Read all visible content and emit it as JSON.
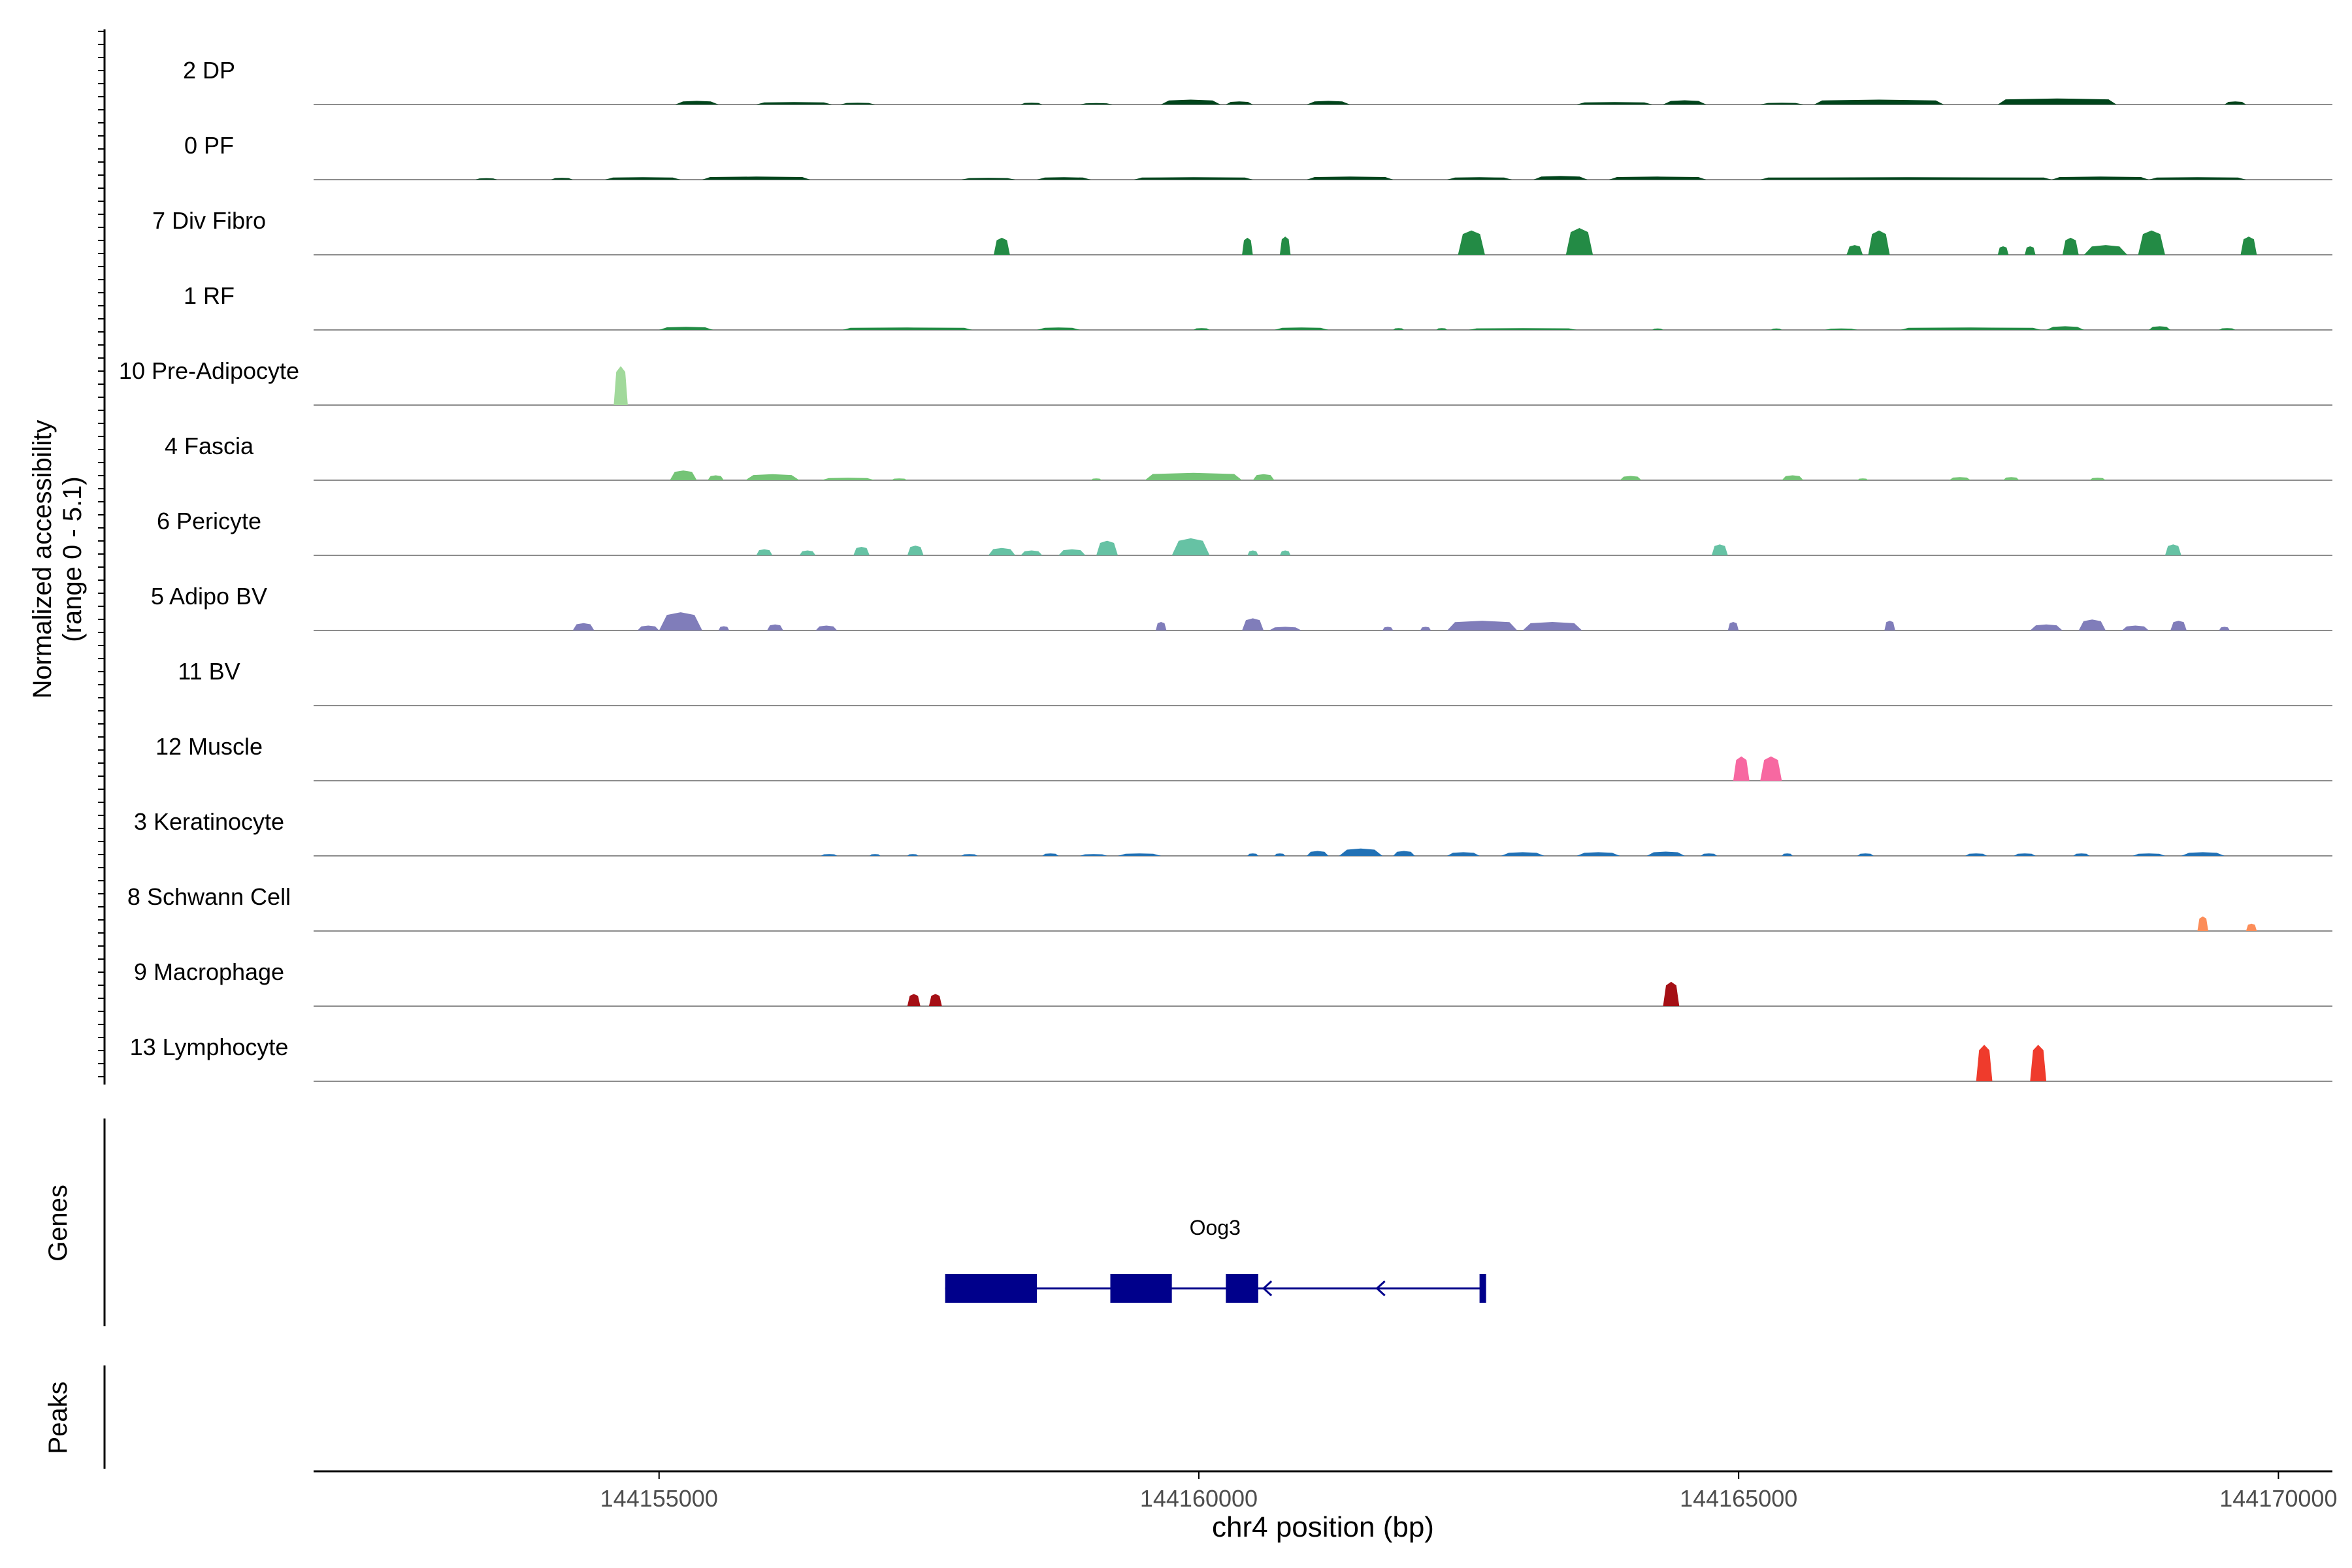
{
  "chart_data": {
    "type": "area",
    "title": "",
    "ylabel_line1": "Normalized accessibility",
    "ylabel_line2": "(range 0 - 5.1)",
    "y_range": [
      0,
      5.1
    ],
    "xlabel": "chr4 position (bp)",
    "xlim": [
      144151800,
      144170500
    ],
    "x_ticks": [
      144155000,
      144160000,
      144165000,
      144170000
    ],
    "x_tick_labels": [
      "144155000",
      "144160000",
      "144165000",
      "144170000"
    ],
    "genes_label": "Genes",
    "peaks_label": "Peaks",
    "gene": {
      "name": "Oog3",
      "start": 144157650,
      "end": 144162650,
      "strand": "-",
      "color": "#00008B",
      "exons": [
        [
          144157650,
          144158500
        ],
        [
          144159180,
          144159750
        ],
        [
          144160250,
          144160550
        ],
        [
          144162600,
          144162650
        ]
      ],
      "arrows": [
        144158350,
        144160600,
        144161650
      ]
    },
    "series": [
      {
        "name": "2 DP",
        "color": "#00441B",
        "peaks": [
          [
            144155150,
            144155550,
            0.3
          ],
          [
            144155900,
            144156600,
            0.2
          ],
          [
            144156680,
            144157000,
            0.15
          ],
          [
            144158350,
            144158550,
            0.15
          ],
          [
            144158900,
            144159200,
            0.12
          ],
          [
            144159650,
            144160200,
            0.4
          ],
          [
            144160250,
            144160500,
            0.25
          ],
          [
            144161000,
            144161400,
            0.3
          ],
          [
            144163500,
            144164200,
            0.2
          ],
          [
            144164300,
            144164700,
            0.35
          ],
          [
            144165200,
            144165600,
            0.15
          ],
          [
            144165700,
            144166900,
            0.4
          ],
          [
            144167400,
            144168500,
            0.5
          ],
          [
            144169500,
            144169700,
            0.25
          ]
        ]
      },
      {
        "name": "0 PF",
        "color": "#00441B",
        "peaks": [
          [
            144153300,
            144153500,
            0.12
          ],
          [
            144154000,
            144154200,
            0.15
          ],
          [
            144154500,
            144155200,
            0.2
          ],
          [
            144155400,
            144156400,
            0.25
          ],
          [
            144157800,
            144158300,
            0.15
          ],
          [
            144158500,
            144159000,
            0.2
          ],
          [
            144159400,
            144160500,
            0.2
          ],
          [
            144161000,
            144161800,
            0.25
          ],
          [
            144162300,
            144162900,
            0.2
          ],
          [
            144163100,
            144163600,
            0.3
          ],
          [
            144163800,
            144164700,
            0.25
          ],
          [
            144165200,
            144167900,
            0.2
          ],
          [
            144167900,
            144168800,
            0.25
          ],
          [
            144168800,
            144169700,
            0.2
          ]
        ]
      },
      {
        "name": "7 Div Fibro",
        "color": "#238B45",
        "peaks": [
          [
            144158100,
            144158250,
            1.4
          ],
          [
            144160400,
            144160500,
            1.4
          ],
          [
            144160750,
            144160850,
            1.5
          ],
          [
            144162400,
            144162650,
            2.0
          ],
          [
            144163400,
            144163650,
            2.2
          ],
          [
            144166000,
            144166150,
            0.8
          ],
          [
            144166200,
            144166400,
            2.0
          ],
          [
            144167400,
            144167500,
            0.7
          ],
          [
            144167650,
            144167750,
            0.7
          ],
          [
            144168000,
            144168150,
            1.4
          ],
          [
            144168200,
            144168600,
            0.8
          ],
          [
            144168700,
            144168950,
            2.0
          ],
          [
            144169650,
            144169800,
            1.5
          ]
        ]
      },
      {
        "name": "1 RF",
        "color": "#238B45",
        "peaks": [
          [
            144155000,
            144155500,
            0.25
          ],
          [
            144156700,
            144157900,
            0.2
          ],
          [
            144158500,
            144158900,
            0.2
          ],
          [
            144159950,
            144160100,
            0.15
          ],
          [
            144160700,
            144161200,
            0.2
          ],
          [
            144161800,
            144161900,
            0.15
          ],
          [
            144162200,
            144162300,
            0.15
          ],
          [
            144162500,
            144163500,
            0.15
          ],
          [
            144164200,
            144164300,
            0.12
          ],
          [
            144165300,
            144165400,
            0.12
          ],
          [
            144165800,
            144166100,
            0.12
          ],
          [
            144166500,
            144167800,
            0.2
          ],
          [
            144167850,
            144168200,
            0.3
          ],
          [
            144168800,
            144169000,
            0.3
          ],
          [
            144169450,
            144169600,
            0.15
          ]
        ]
      },
      {
        "name": "10 Pre-Adipocyte",
        "color": "#A1D99B",
        "peaks": [
          [
            144154580,
            144154710,
            3.2
          ]
        ]
      },
      {
        "name": "4 Fascia",
        "color": "#74C476",
        "peaks": [
          [
            144155100,
            144155350,
            0.8
          ],
          [
            144155450,
            144155600,
            0.4
          ],
          [
            144155800,
            144156300,
            0.5
          ],
          [
            144156500,
            144157000,
            0.2
          ],
          [
            144157150,
            144157300,
            0.15
          ],
          [
            144159000,
            144159100,
            0.15
          ],
          [
            144159500,
            144160400,
            0.6
          ],
          [
            144160500,
            144160700,
            0.5
          ],
          [
            144163900,
            144164100,
            0.35
          ],
          [
            144165400,
            144165600,
            0.4
          ],
          [
            144166100,
            144166200,
            0.15
          ],
          [
            144166950,
            144167150,
            0.25
          ],
          [
            144167450,
            144167600,
            0.25
          ],
          [
            144168250,
            144168400,
            0.2
          ]
        ]
      },
      {
        "name": "6 Pericyte",
        "color": "#66C2A4",
        "peaks": [
          [
            144155900,
            144156050,
            0.5
          ],
          [
            144156300,
            144156450,
            0.4
          ],
          [
            144156800,
            144156950,
            0.7
          ],
          [
            144157300,
            144157450,
            0.8
          ],
          [
            144158050,
            144158300,
            0.6
          ],
          [
            144158350,
            144158550,
            0.4
          ],
          [
            144158700,
            144158950,
            0.5
          ],
          [
            144159050,
            144159250,
            1.2
          ],
          [
            144159750,
            144160100,
            1.4
          ],
          [
            144160450,
            144160550,
            0.4
          ],
          [
            144160750,
            144160850,
            0.4
          ],
          [
            144164750,
            144164900,
            0.9
          ],
          [
            144168950,
            144169100,
            0.9
          ]
        ]
      },
      {
        "name": "5 Adipo BV",
        "color": "#807DBA",
        "peaks": [
          [
            144154200,
            144154400,
            0.6
          ],
          [
            144154800,
            144155000,
            0.4
          ],
          [
            144155000,
            144155400,
            1.5
          ],
          [
            144155550,
            144155650,
            0.35
          ],
          [
            144156000,
            144156150,
            0.5
          ],
          [
            144156450,
            144156650,
            0.4
          ],
          [
            144159600,
            144159700,
            0.7
          ],
          [
            144160400,
            144160600,
            1.0
          ],
          [
            144160650,
            144160950,
            0.3
          ],
          [
            144161700,
            144161800,
            0.3
          ],
          [
            144162050,
            144162150,
            0.3
          ],
          [
            144162300,
            144162950,
            0.8
          ],
          [
            144163000,
            144163550,
            0.7
          ],
          [
            144164900,
            144165000,
            0.7
          ],
          [
            144166350,
            144166450,
            0.8
          ],
          [
            144167700,
            144168000,
            0.5
          ],
          [
            144168150,
            144168400,
            0.9
          ],
          [
            144168550,
            144168800,
            0.4
          ],
          [
            144169000,
            144169150,
            0.8
          ],
          [
            144169450,
            144169550,
            0.3
          ]
        ]
      },
      {
        "name": "11 BV",
        "color": "#6A51A3",
        "peaks": []
      },
      {
        "name": "12 Muscle",
        "color": "#F768A1",
        "peaks": [
          [
            144164950,
            144165100,
            2.0
          ],
          [
            144165200,
            144165400,
            2.0
          ]
        ]
      },
      {
        "name": "3 Keratinocyte",
        "color": "#2171B5",
        "peaks": [
          [
            144156500,
            144156650,
            0.15
          ],
          [
            144156950,
            144157050,
            0.15
          ],
          [
            144157300,
            144157400,
            0.15
          ],
          [
            144157800,
            144157950,
            0.15
          ],
          [
            144158550,
            144158700,
            0.2
          ],
          [
            144158900,
            144159150,
            0.15
          ],
          [
            144159250,
            144159650,
            0.2
          ],
          [
            144160450,
            144160550,
            0.2
          ],
          [
            144160700,
            144160800,
            0.2
          ],
          [
            144161000,
            144161200,
            0.4
          ],
          [
            144161300,
            144161700,
            0.6
          ],
          [
            144161800,
            144162000,
            0.4
          ],
          [
            144162300,
            144162600,
            0.3
          ],
          [
            144162800,
            144163200,
            0.3
          ],
          [
            144163500,
            144163900,
            0.3
          ],
          [
            144164150,
            144164500,
            0.35
          ],
          [
            144164650,
            144164800,
            0.2
          ],
          [
            144165400,
            144165500,
            0.2
          ],
          [
            144166100,
            144166250,
            0.2
          ],
          [
            144167100,
            144167300,
            0.2
          ],
          [
            144167550,
            144167750,
            0.2
          ],
          [
            144168100,
            144168250,
            0.2
          ],
          [
            144168650,
            144168950,
            0.2
          ],
          [
            144169100,
            144169500,
            0.3
          ]
        ]
      },
      {
        "name": "8 Schwann Cell",
        "color": "#FC8D59",
        "peaks": [
          [
            144169250,
            144169350,
            1.2
          ],
          [
            144169700,
            144169800,
            0.6
          ]
        ]
      },
      {
        "name": "9 Macrophage",
        "color": "#A50F15",
        "peaks": [
          [
            144157300,
            144157420,
            1.0
          ],
          [
            144157500,
            144157620,
            1.0
          ],
          [
            144164300,
            144164450,
            2.0
          ]
        ]
      },
      {
        "name": "13 Lymphocyte",
        "color": "#EF3B2C",
        "peaks": [
          [
            144167200,
            144167350,
            3.0
          ],
          [
            144167700,
            144167850,
            3.0
          ]
        ]
      }
    ]
  }
}
